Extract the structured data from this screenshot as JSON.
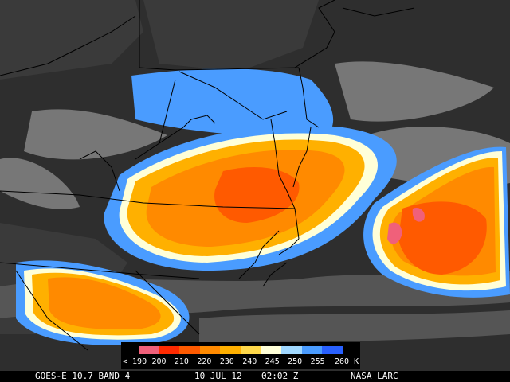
{
  "footer": {
    "product": "GOES-E 10.7 BAND 4",
    "date": "10 JUL 12",
    "time": "02:02 Z",
    "source": "NASA LARC"
  },
  "legend": {
    "labels": [
      "< 190",
      "200",
      "210",
      "220",
      "230",
      "240",
      "245",
      "250",
      "255",
      "260 K"
    ],
    "colors": [
      "#f0607a",
      "#ff2a00",
      "#ff5a00",
      "#ff8a00",
      "#ffb000",
      "#ffd84a",
      "#ffffd8",
      "#a0d8ff",
      "#4a9cff",
      "#2860ff"
    ]
  },
  "map": {
    "background_color": "#2e2e2e",
    "border_color": "#000000"
  }
}
